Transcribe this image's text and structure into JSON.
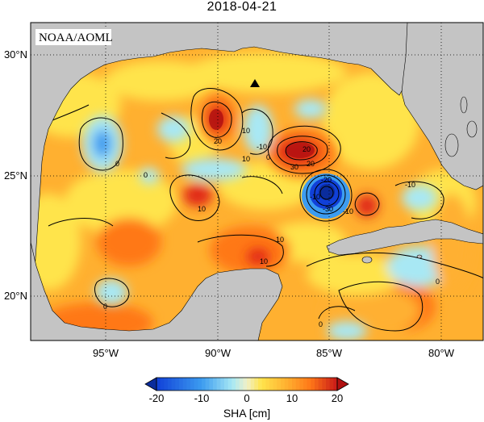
{
  "title": "2018-04-21",
  "agency_label": "NOAA/AOML",
  "colors": {
    "land": "#c4c4c4",
    "strong_neg": "#1040d8",
    "neg": "#3c9cf0",
    "weak_neg": "#a8e8f4",
    "near_zero": "#f0f0c8",
    "weak_pos": "#ffe44c",
    "pos": "#ffb030",
    "mid_pos": "#ff7818",
    "strong_pos": "#e02818",
    "max_pos": "#b01010"
  },
  "map": {
    "lat_ticks": [
      "30°N",
      "25°N",
      "20°N"
    ],
    "lon_ticks": [
      "95°W",
      "90°W",
      "85°W",
      "80°W"
    ],
    "contour_labels": [
      "10",
      "0",
      "20",
      "-10",
      "0",
      "30",
      "20",
      "-20",
      "-30",
      "-10",
      "10",
      "10",
      "10",
      "0",
      "0",
      "-10",
      "0",
      "10",
      "0",
      "20",
      "-10"
    ],
    "markers": [
      {
        "name": "triangle",
        "lon": -88.5,
        "lat": 28.5
      }
    ]
  },
  "colorbar": {
    "label": "SHA [cm]",
    "ticks": [
      "-20",
      "-10",
      "0",
      "10",
      "20"
    ],
    "range": [
      -24,
      24
    ]
  }
}
